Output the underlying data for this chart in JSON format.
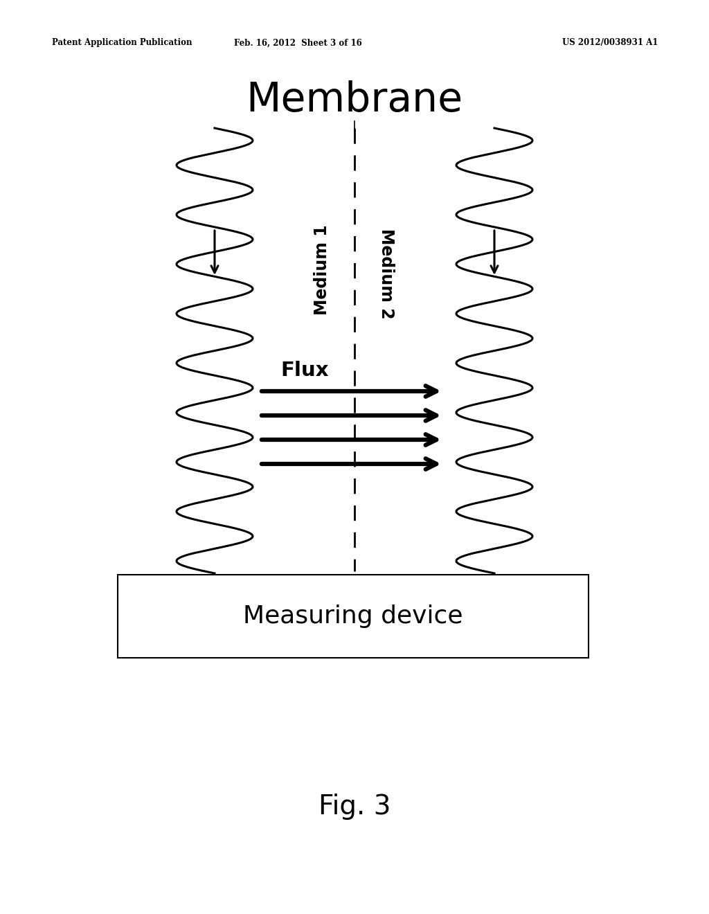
{
  "bg_color": "#ffffff",
  "header_left": "Patent Application Publication",
  "header_center": "Feb. 16, 2012  Sheet 3 of 16",
  "header_right": "US 2012/0038931 A1",
  "title": "Membrane",
  "medium1_label": "Medium 1",
  "medium2_label": "Medium 2",
  "flux_label": "Flux",
  "device_label": "Measuring device",
  "fig_label": "Fig. 3"
}
